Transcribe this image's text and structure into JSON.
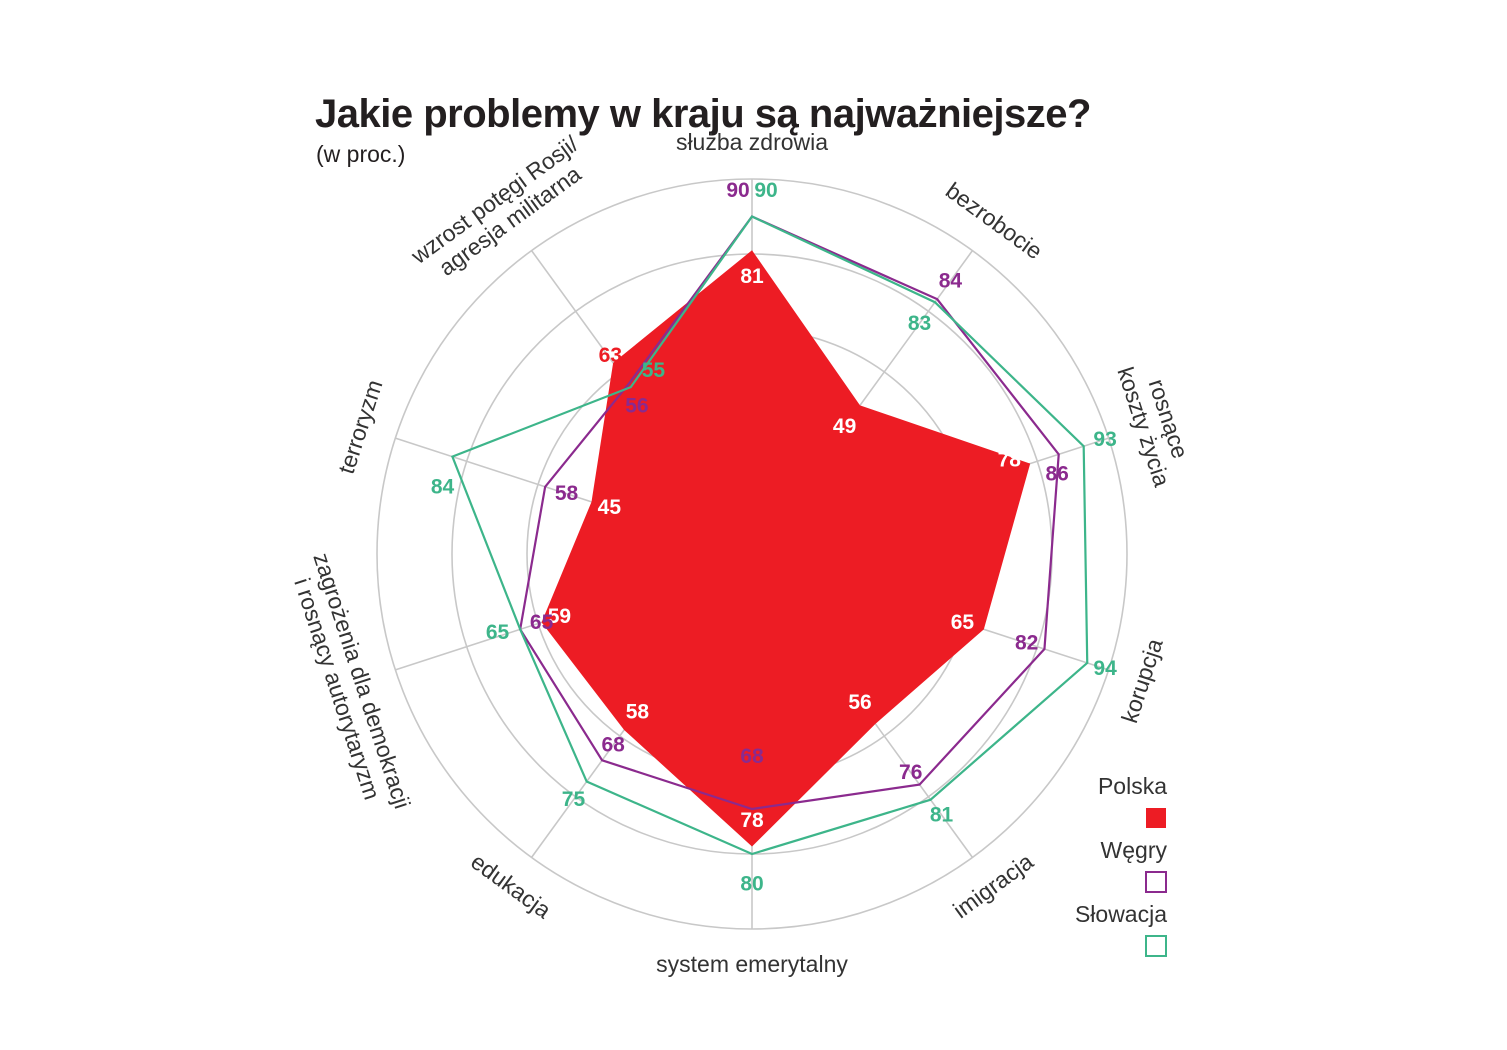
{
  "chart_data": {
    "type": "radar",
    "title": "Jakie problemy w kraju są najważniejsze?",
    "subtitle": "(w proc.)",
    "categories": [
      "służba zdrowia",
      "bezrobocie",
      "rosnące koszty życia",
      "korupcja",
      "imigracja",
      "system emerytalny",
      "edukacja",
      "zagrożenia dla demokracji i rosnący autorytaryzm",
      "terroryzm",
      "wzrost potęgi Rosji/ agresja militarna"
    ],
    "category_label_lines": [
      [
        "służba zdrowia"
      ],
      [
        "bezrobocie"
      ],
      [
        "rosnące",
        "koszty życia"
      ],
      [
        "korupcja"
      ],
      [
        "imigracja"
      ],
      [
        "system emerytalny"
      ],
      [
        "edukacja"
      ],
      [
        "zagrożenia dla demokracji",
        "i rosnący autorytaryzm"
      ],
      [
        "terroryzm"
      ],
      [
        "wzrost potęgi Rosji/",
        "agresja militarna"
      ]
    ],
    "rlim": [
      0,
      100
    ],
    "grid": true,
    "legend_position": "bottom-right",
    "series": [
      {
        "name": "Polska",
        "color": "#ed1c24",
        "style": "filled",
        "values": [
          81,
          49,
          78,
          65,
          56,
          78,
          58,
          59,
          45,
          63
        ]
      },
      {
        "name": "Węgry",
        "color": "#8b2a8e",
        "style": "outline",
        "values": [
          90,
          84,
          86,
          82,
          76,
          68,
          68,
          65,
          58,
          56
        ]
      },
      {
        "name": "Słowacja",
        "color": "#3db58a",
        "style": "outline",
        "values": [
          90,
          83,
          93,
          94,
          81,
          80,
          75,
          65,
          84,
          55
        ]
      }
    ]
  },
  "colors": {
    "grid": "#c8c8c8",
    "label_on_fill": "#ffffff"
  }
}
